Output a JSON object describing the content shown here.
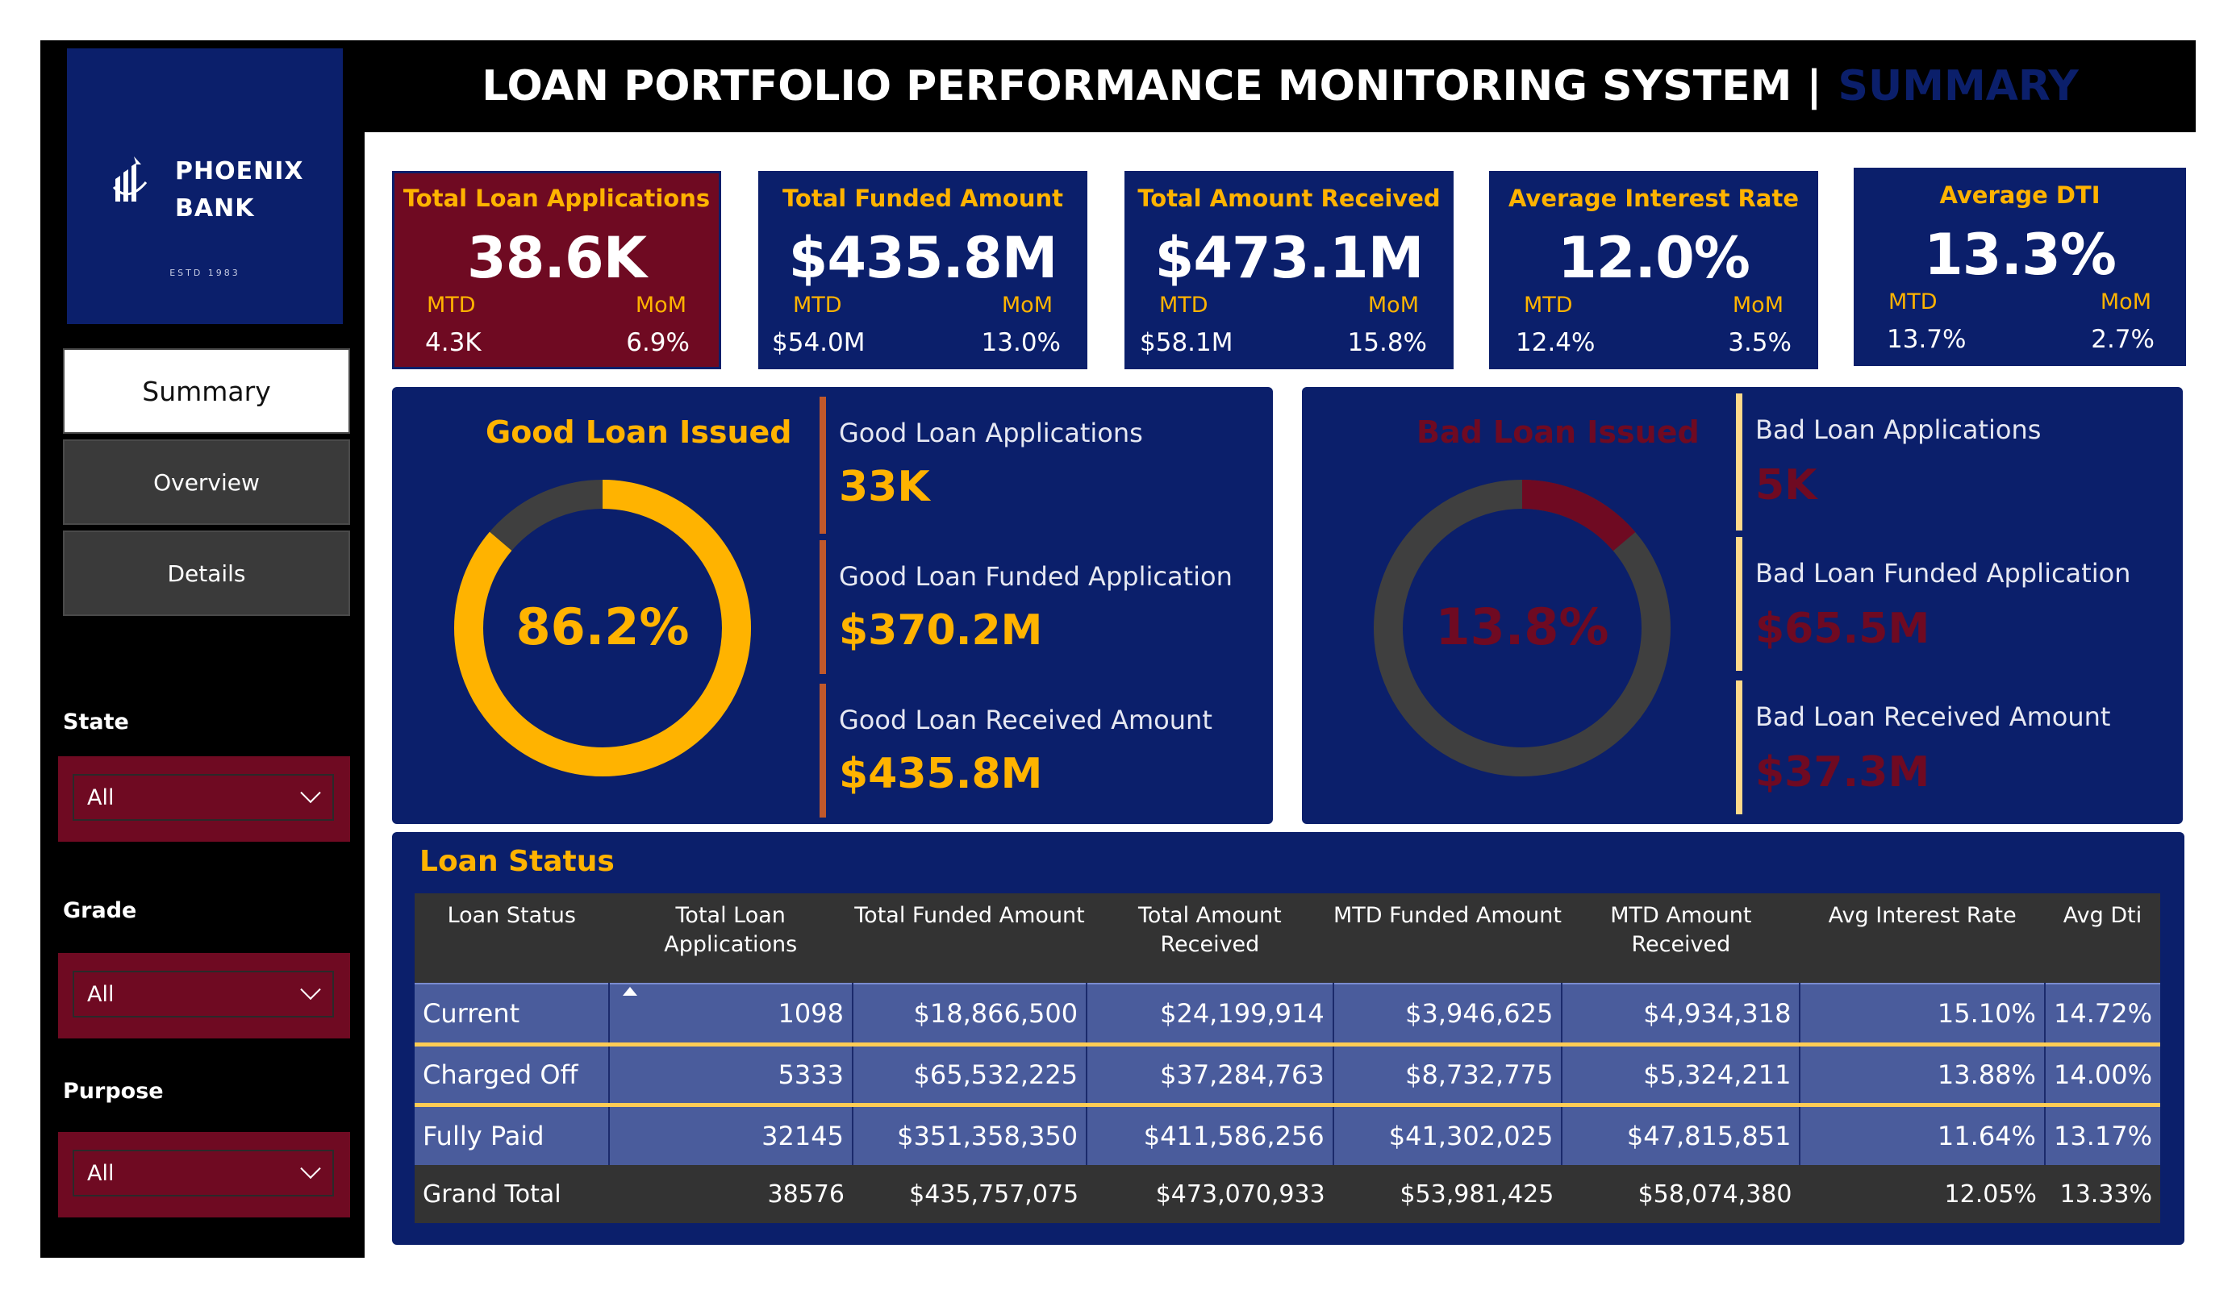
{
  "header": {
    "title": "LOAN PORTFOLIO PERFORMANCE MONITORING SYSTEM |",
    "subtitle": "SUMMARY"
  },
  "brand": {
    "name_line1": "PHOENIX",
    "name_line2": "BANK",
    "estd": "ESTD 1983"
  },
  "nav": {
    "summary": "Summary",
    "overview": "Overview",
    "details": "Details"
  },
  "filters": [
    {
      "label": "State",
      "value": "All"
    },
    {
      "label": "Grade",
      "value": "All"
    },
    {
      "label": "Purpose",
      "value": "All"
    }
  ],
  "kpis": [
    {
      "title": "Total Loan Applications",
      "value": "38.6K",
      "mtd_label": "MTD",
      "mtd": "4.3K",
      "mom_label": "MoM",
      "mom": "6.9%"
    },
    {
      "title": "Total Funded Amount",
      "value": "$435.8M",
      "mtd_label": "MTD",
      "mtd": "$54.0M",
      "mom_label": "MoM",
      "mom": "13.0%"
    },
    {
      "title": "Total Amount Received",
      "value": "$473.1M",
      "mtd_label": "MTD",
      "mtd": "$58.1M",
      "mom_label": "MoM",
      "mom": "15.8%"
    },
    {
      "title": "Average Interest Rate",
      "value": "12.0%",
      "mtd_label": "MTD",
      "mtd": "12.4%",
      "mom_label": "MoM",
      "mom": "3.5%"
    },
    {
      "title": "Average DTI",
      "value": "13.3%",
      "mtd_label": "MTD",
      "mtd": "13.7%",
      "mom_label": "MoM",
      "mom": "2.7%"
    }
  ],
  "good_loan": {
    "title": "Good Loan Issued",
    "percent_label": "86.2%",
    "percent": 0.862,
    "color": "#ffb300",
    "applications_label": "Good Loan Applications",
    "applications": "33K",
    "funded_label": "Good Loan Funded Application",
    "funded": "$370.2M",
    "received_label": "Good Loan Received Amount",
    "received": "$435.8M"
  },
  "bad_loan": {
    "title": "Bad Loan Issued",
    "percent_label": "13.8%",
    "percent": 0.138,
    "color": "#6f0a22",
    "applications_label": "Bad Loan Applications",
    "applications": "5K",
    "funded_label": "Bad Loan Funded Application",
    "funded": "$65.5M",
    "received_label": "Bad Loan Received Amount",
    "received": "$37.3M"
  },
  "loan_status": {
    "title": "Loan Status",
    "columns": [
      "Loan Status",
      "Total Loan Applications",
      "Total Funded Amount",
      "Total Amount Received",
      "MTD Funded Amount",
      "MTD Amount Received",
      "Avg Interest Rate",
      "Avg Dti"
    ],
    "rows": [
      [
        "Current",
        "1098",
        "$18,866,500",
        "$24,199,914",
        "$3,946,625",
        "$4,934,318",
        "15.10%",
        "14.72%"
      ],
      [
        "Charged Off",
        "5333",
        "$65,532,225",
        "$37,284,763",
        "$8,732,775",
        "$5,324,211",
        "13.88%",
        "14.00%"
      ],
      [
        "Fully Paid",
        "32145",
        "$351,358,350",
        "$411,586,256",
        "$41,302,025",
        "$47,815,851",
        "11.64%",
        "13.17%"
      ]
    ],
    "total": [
      "Grand Total",
      "38576",
      "$435,757,075",
      "$473,070,933",
      "$53,981,425",
      "$58,074,380",
      "12.05%",
      "13.33%"
    ]
  }
}
